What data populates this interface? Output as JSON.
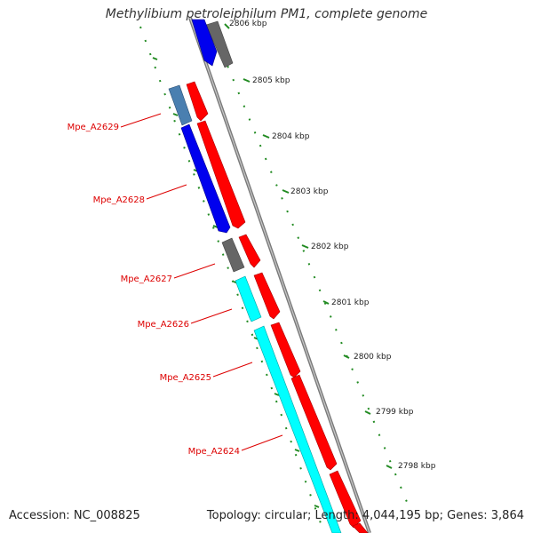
{
  "title": "Methylibium petroleiphilum PM1, complete genome",
  "footer": {
    "accession": "Accession: NC_008825",
    "summary": "Topology: circular; Length: 4,044,195 bp; Genes: 3,864"
  },
  "ticks": [
    {
      "label": "2806 kbp"
    },
    {
      "label": "2805 kbp"
    },
    {
      "label": "2804 kbp"
    },
    {
      "label": "2803 kbp"
    },
    {
      "label": "2802 kbp"
    },
    {
      "label": "2801 kbp"
    },
    {
      "label": "2800 kbp"
    },
    {
      "label": "2799 kbp"
    },
    {
      "label": "2798 kbp"
    }
  ],
  "gene_labels": [
    {
      "label": "Mpe_A2629"
    },
    {
      "label": "Mpe_A2628"
    },
    {
      "label": "Mpe_A2627"
    },
    {
      "label": "Mpe_A2626"
    },
    {
      "label": "Mpe_A2625"
    },
    {
      "label": "Mpe_A2624"
    }
  ],
  "colors": {
    "backbone": "#808080",
    "tick": "#228B22",
    "label": "#dd0000",
    "cds_forward": "#ff0000",
    "cds_reverse_blue": "#0000ee",
    "cds_reverse_steel": "#4a7fb0",
    "cds_reverse_cyan": "#00ffff",
    "gene_grey": "#666666"
  }
}
